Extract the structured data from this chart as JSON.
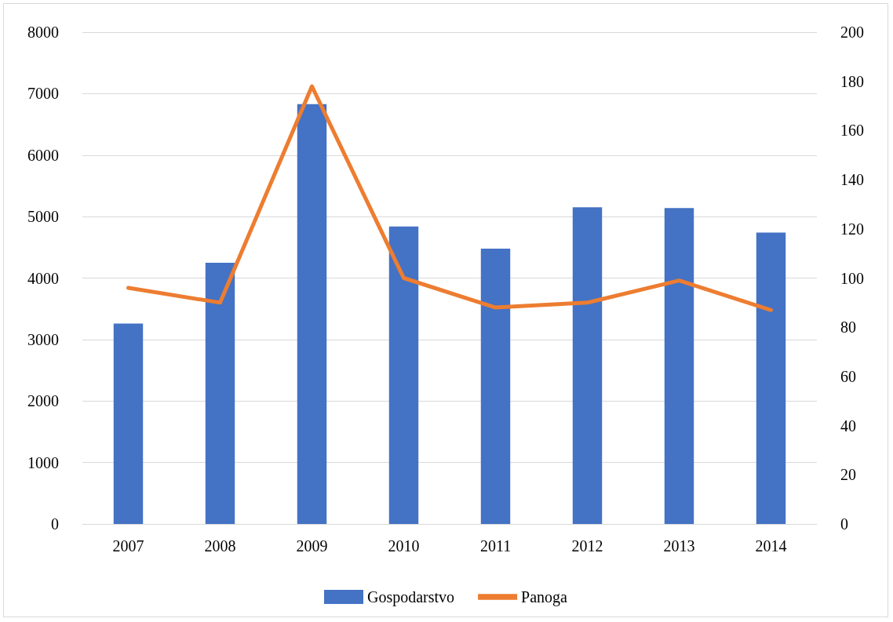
{
  "chart_data": {
    "type": "bar",
    "categories": [
      "2007",
      "2008",
      "2009",
      "2010",
      "2011",
      "2012",
      "2013",
      "2014"
    ],
    "series": [
      {
        "name": "Gospodarstvo",
        "color": "#4472c4",
        "values": [
          3260,
          4250,
          6830,
          4840,
          4480,
          5150,
          5140,
          4740
        ]
      },
      {
        "name": "Panoga",
        "type": "line",
        "axis": "y2",
        "color": "#ed7d31",
        "values": [
          96,
          90,
          178,
          100,
          88,
          90,
          99,
          87
        ]
      }
    ],
    "ylim": [
      0,
      8000
    ],
    "yticks": [
      0,
      1000,
      2000,
      3000,
      4000,
      5000,
      6000,
      7000,
      8000
    ],
    "y2lim": [
      0,
      200
    ],
    "y2ticks": [
      0,
      20,
      40,
      60,
      80,
      100,
      120,
      140,
      160,
      180,
      200
    ],
    "grid": "y",
    "legend": "bottom",
    "marker": "none",
    "line_style": "solid"
  }
}
